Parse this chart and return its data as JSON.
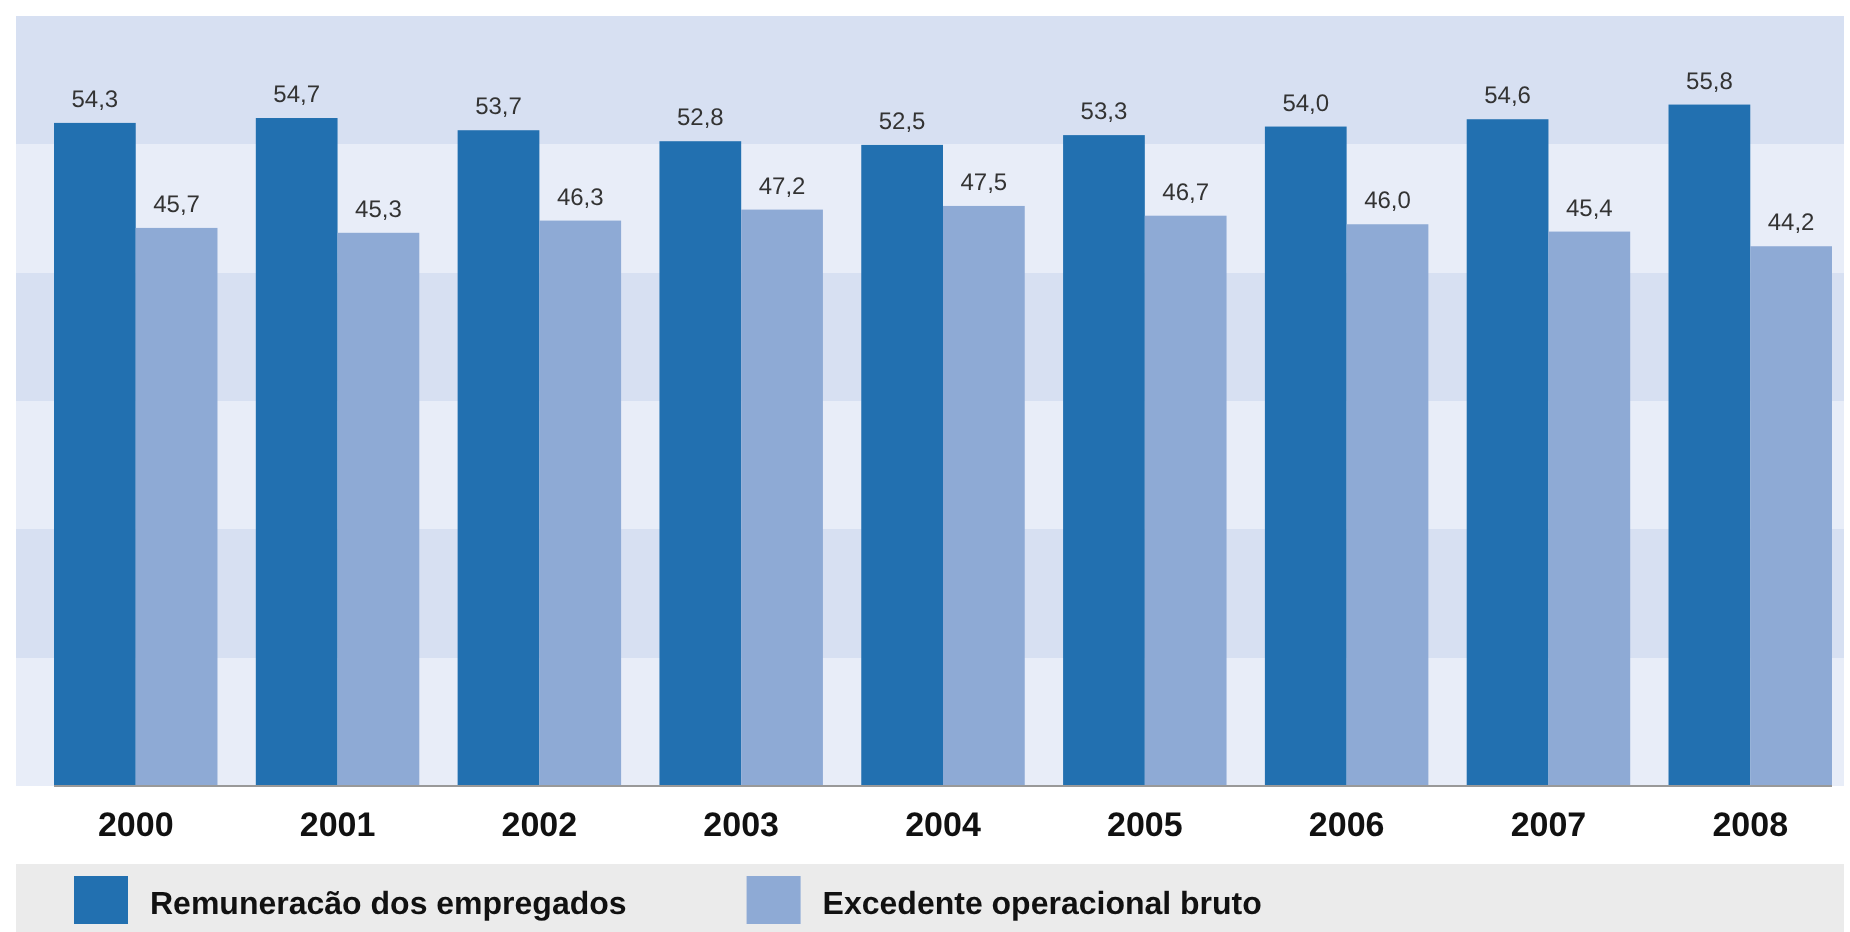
{
  "chart_data": {
    "type": "bar",
    "categories": [
      "2000",
      "2001",
      "2002",
      "2003",
      "2004",
      "2005",
      "2006",
      "2007",
      "2008"
    ],
    "series": [
      {
        "name": "Remuneracão dos empregados",
        "color": "#2270b0",
        "values": [
          54.3,
          54.7,
          53.7,
          52.8,
          52.5,
          53.3,
          54.0,
          54.6,
          55.8
        ],
        "value_labels": [
          "54,3",
          "54,7",
          "53,7",
          "52,8",
          "52,5",
          "53,3",
          "54,0",
          "54,6",
          "55,8"
        ]
      },
      {
        "name": "Excedente operacional bruto",
        "color": "#8eaad5",
        "values": [
          45.7,
          45.3,
          46.3,
          47.2,
          47.5,
          46.7,
          46.0,
          45.4,
          44.2
        ],
        "value_labels": [
          "45,7",
          "45,3",
          "46,3",
          "47,2",
          "47,5",
          "46,7",
          "46,0",
          "45,4",
          "44,2"
        ]
      }
    ],
    "legend": "bottom"
  }
}
